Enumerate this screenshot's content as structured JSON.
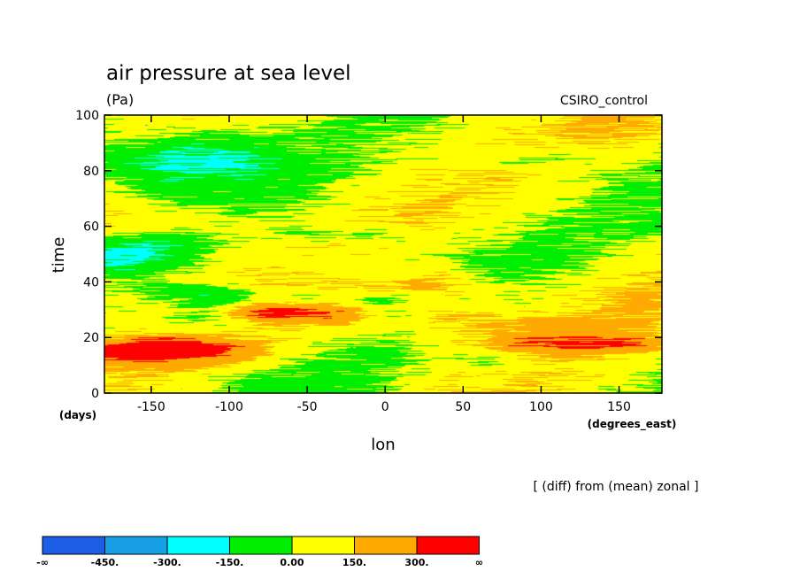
{
  "chart_data": {
    "type": "heatmap",
    "title": "air pressure at sea level",
    "units": "(Pa)",
    "model_label": "CSIRO_control",
    "xlabel": "lon",
    "ylabel": "time",
    "x_unit": "(degrees_east)",
    "y_unit": "(days)",
    "annotation": "[ (diff) from (mean) zonal ]",
    "xlim": [
      -180,
      177.5
    ],
    "ylim": [
      0,
      100
    ],
    "x_ticks": [
      "-150",
      "-100",
      "-50",
      "0",
      "50",
      "100",
      "150"
    ],
    "x_tick_values": [
      -150,
      -100,
      -50,
      0,
      50,
      100,
      150
    ],
    "y_ticks": [
      "0",
      "20",
      "40",
      "60",
      "80",
      "100"
    ],
    "y_tick_values": [
      0,
      20,
      40,
      60,
      80,
      100
    ],
    "colorbar": {
      "bounds": [
        "-∞",
        "-450.",
        "-300.",
        "-150.",
        "0.00",
        "150.",
        "300.",
        "∞"
      ],
      "colors": [
        "#1c5fe6",
        "#18a0e6",
        "#00ffff",
        "#00ee00",
        "#ffff00",
        "#ffaa00",
        "#ff0000"
      ]
    },
    "grid": false,
    "legend": "bottom-left colorbar",
    "field_note_visible": false
  }
}
